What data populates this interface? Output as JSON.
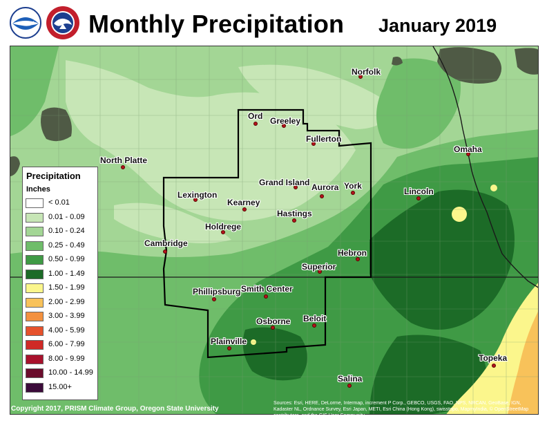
{
  "header": {
    "title": "Monthly Precipitation",
    "date": "January 2019"
  },
  "legend": {
    "title": "Precipitation",
    "units": "Inches",
    "items": [
      {
        "label": "< 0.01",
        "color": "#ffffff"
      },
      {
        "label": "0.01 - 0.09",
        "color": "#c7e6b6"
      },
      {
        "label": "0.10 - 0.24",
        "color": "#a3d695"
      },
      {
        "label": "0.25 - 0.49",
        "color": "#6fbd6a"
      },
      {
        "label": "0.50 - 0.99",
        "color": "#3f9a45"
      },
      {
        "label": "1.00 - 1.49",
        "color": "#1c6b27"
      },
      {
        "label": "1.50 - 1.99",
        "color": "#fbf68c"
      },
      {
        "label": "2.00 - 2.99",
        "color": "#f8c25a"
      },
      {
        "label": "3.00 - 3.99",
        "color": "#f3913f"
      },
      {
        "label": "4.00 - 5.99",
        "color": "#e6522c"
      },
      {
        "label": "6.00 - 7.99",
        "color": "#cf2a26"
      },
      {
        "label": "8.00 - 9.99",
        "color": "#a8112c"
      },
      {
        "label": "10.00 - 14.99",
        "color": "#6b0c2c"
      },
      {
        "label": "15.00+",
        "color": "#3b0b3a"
      }
    ]
  },
  "cities": [
    {
      "name": "Norfolk"
    },
    {
      "name": "Ord"
    },
    {
      "name": "Greeley"
    },
    {
      "name": "Fullerton"
    },
    {
      "name": "North Platte"
    },
    {
      "name": "Omaha"
    },
    {
      "name": "Grand Island"
    },
    {
      "name": "Aurora"
    },
    {
      "name": "York"
    },
    {
      "name": "Lexington"
    },
    {
      "name": "Lincoln"
    },
    {
      "name": "Kearney"
    },
    {
      "name": "Hastings"
    },
    {
      "name": "Holdrege"
    },
    {
      "name": "Cambridge"
    },
    {
      "name": "Hebron"
    },
    {
      "name": "Superior"
    },
    {
      "name": "Phillipsburg"
    },
    {
      "name": "Smith Center"
    },
    {
      "name": "Osborne"
    },
    {
      "name": "Beloit"
    },
    {
      "name": "Plainville"
    },
    {
      "name": "Topeka"
    },
    {
      "name": "Salina"
    }
  ],
  "credits": {
    "copyright": "Copyright 2017, PRISM Climate Group, Oregon State University",
    "sources": "Sources: Esri, HERE, DeLorme, Intermap, increment P Corp., GEBCO, USGS, FAO, NPS, NRCAN, GeoBase, IGN, Kadaster NL, Ordnance Survey, Esri Japan, METI, Esri China (Hong Kong), swisstopo, MapmyIndia, © OpenStreetMap contributors, and the GIS User Community"
  }
}
